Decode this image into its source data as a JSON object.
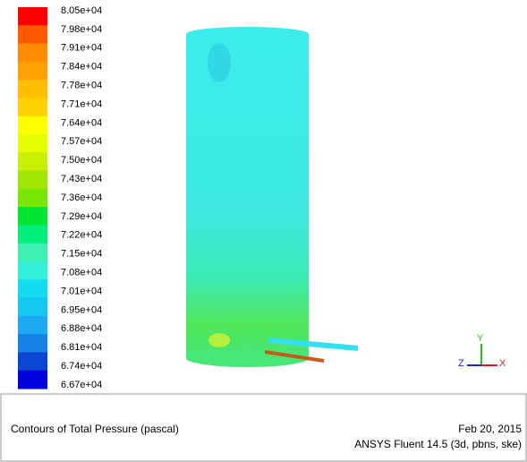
{
  "legend": {
    "labels": [
      "8.05e+04",
      "7.98e+04",
      "7.91e+04",
      "7.84e+04",
      "7.78e+04",
      "7.71e+04",
      "7.64e+04",
      "7.57e+04",
      "7.50e+04",
      "7.43e+04",
      "7.36e+04",
      "7.29e+04",
      "7.22e+04",
      "7.15e+04",
      "7.08e+04",
      "7.01e+04",
      "6.95e+04",
      "6.88e+04",
      "6.81e+04",
      "6.74e+04",
      "6.67e+04"
    ],
    "colors": [
      "#ff0000",
      "#ff5a00",
      "#ff8c00",
      "#ffa000",
      "#ffbe00",
      "#ffd200",
      "#ffff00",
      "#e6ff00",
      "#c8f000",
      "#a0e600",
      "#78e600",
      "#00e632",
      "#00f07a",
      "#3cf0b4",
      "#32f0dc",
      "#14dcf0",
      "#14c8f0",
      "#1eaaf0",
      "#1482e6",
      "#0a46d2",
      "#0000dc"
    ]
  },
  "axes": {
    "x": "X",
    "y": "Y",
    "z": "Z"
  },
  "footer": {
    "title": "Contours of Total Pressure (pascal)",
    "date": "Feb 20, 2015",
    "version": "ANSYS Fluent 14.5 (3d, pbns, ske)"
  }
}
